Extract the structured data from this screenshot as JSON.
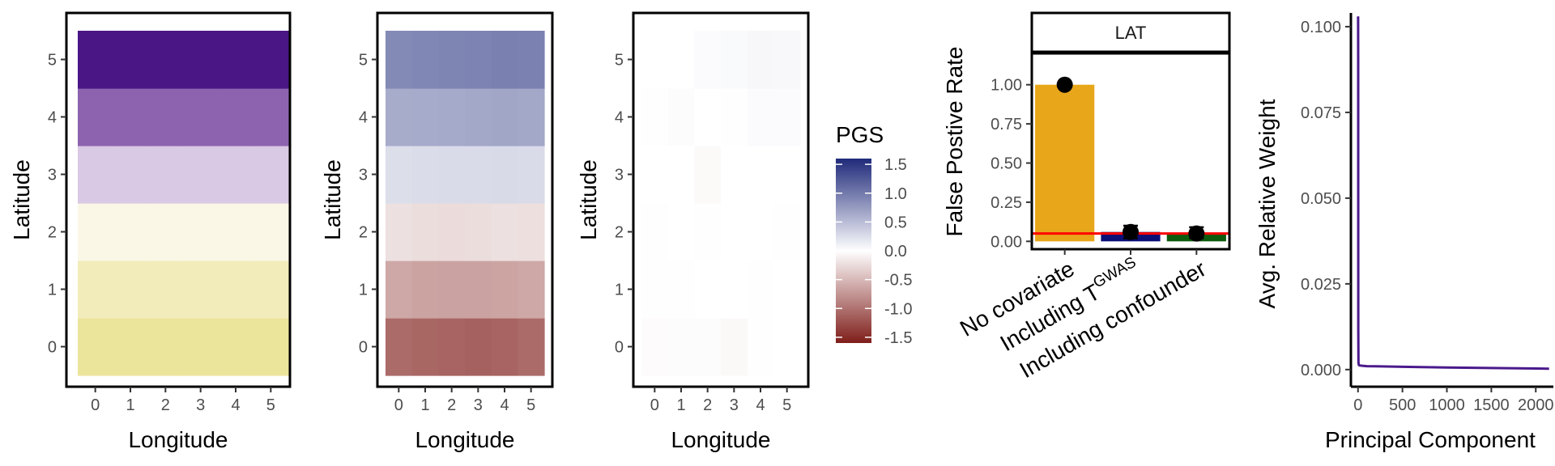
{
  "chart_data": [
    {
      "type": "heatmap",
      "xlabel": "Longitude",
      "ylabel": "Latitude",
      "x": [
        0,
        1,
        2,
        3,
        4,
        5
      ],
      "y": [
        0,
        1,
        2,
        3,
        4,
        5
      ],
      "x_tick_labels": [
        "0",
        "1",
        "2",
        "3",
        "4",
        "5"
      ],
      "y_tick_labels": [
        "0",
        "1",
        "2",
        "3",
        "4",
        "5"
      ],
      "row_colors": [
        "#ebe59c",
        "#f2ecbb",
        "#faf7e6",
        "#d9c9e4",
        "#8d63b0",
        "#4a1585"
      ],
      "grid": false
    },
    {
      "type": "heatmap",
      "xlabel": "Longitude",
      "ylabel": "Latitude",
      "x": [
        0,
        1,
        2,
        3,
        4,
        5
      ],
      "y": [
        0,
        1,
        2,
        3,
        4,
        5
      ],
      "x_tick_labels": [
        "0",
        "1",
        "2",
        "3",
        "4",
        "5"
      ],
      "y_tick_labels": [
        "0",
        "1",
        "2",
        "3",
        "4",
        "5"
      ],
      "values": [
        [
          -1.05,
          -1.08,
          -1.1,
          -1.12,
          -1.1,
          -1.05
        ],
        [
          -0.62,
          -0.65,
          -0.66,
          -0.66,
          -0.64,
          -0.62
        ],
        [
          -0.22,
          -0.24,
          -0.25,
          -0.24,
          -0.22,
          -0.23
        ],
        [
          0.25,
          0.26,
          0.27,
          0.27,
          0.28,
          0.27
        ],
        [
          0.62,
          0.63,
          0.64,
          0.66,
          0.67,
          0.66
        ],
        [
          0.88,
          0.9,
          0.92,
          0.93,
          0.95,
          0.94
        ]
      ],
      "grid": false
    },
    {
      "type": "heatmap",
      "xlabel": "Longitude",
      "ylabel": "Latitude",
      "x": [
        0,
        1,
        2,
        3,
        4,
        5
      ],
      "y": [
        0,
        1,
        2,
        3,
        4,
        5
      ],
      "x_tick_labels": [
        "0",
        "1",
        "2",
        "3",
        "4",
        "5"
      ],
      "y_tick_labels": [
        "0",
        "1",
        "2",
        "3",
        "4",
        "5"
      ],
      "values": [
        [
          -0.03,
          -0.02,
          -0.02,
          -0.05,
          -0.01,
          0.0
        ],
        [
          -0.01,
          -0.01,
          0.0,
          0.0,
          0.01,
          0.0
        ],
        [
          -0.01,
          0.0,
          -0.01,
          0.0,
          0.0,
          0.01
        ],
        [
          0.0,
          0.0,
          -0.04,
          0.0,
          0.0,
          0.0
        ],
        [
          0.01,
          0.02,
          0.0,
          0.01,
          0.03,
          0.03
        ],
        [
          0.0,
          0.0,
          0.03,
          0.04,
          0.06,
          0.05
        ]
      ],
      "legend": {
        "title": "PGS",
        "ticks": [
          "1.5",
          "1.0",
          "0.5",
          "0.0",
          "-0.5",
          "-1.0",
          "-1.5"
        ],
        "tick_values": [
          1.5,
          1.0,
          0.5,
          0.0,
          -0.5,
          -1.0,
          -1.5
        ],
        "range": [
          -1.6,
          1.6
        ],
        "low_color": "#7f1e1a",
        "mid_color": "#ffffff",
        "high_color": "#1f2a7a"
      },
      "grid": false
    },
    {
      "type": "bar",
      "facet_label": "LAT",
      "ylabel": "False Postive Rate",
      "categories": [
        "No covariate",
        "Including T^GWAS",
        "Including confounder"
      ],
      "category_labels": [
        {
          "text": "No covariate"
        },
        {
          "text": "Including T",
          "sup": "GWAS"
        },
        {
          "text": "Including confounder"
        }
      ],
      "values": [
        1.0,
        0.06,
        0.05
      ],
      "error_low": [
        1.0,
        0.02,
        0.02
      ],
      "error_high": [
        1.0,
        0.1,
        0.09
      ],
      "colors": [
        "#e8a61a",
        "#0a0f78",
        "#0e5b0e"
      ],
      "reference_line": 0.05,
      "reference_color": "#ff0000",
      "ylim": [
        -0.05,
        1.2
      ],
      "y_ticks": [
        0.0,
        0.25,
        0.5,
        0.75,
        1.0
      ],
      "y_tick_labels": [
        "0.00",
        "0.25",
        "0.50",
        "0.75",
        "1.00"
      ],
      "grid": false
    },
    {
      "type": "line",
      "xlabel": "Principal Component",
      "ylabel": "Avg. Relative Weight",
      "x": [
        1,
        2,
        3,
        5,
        10,
        20,
        50,
        100,
        200,
        500,
        1000,
        1500,
        2000,
        2150
      ],
      "values": [
        0.103,
        0.09,
        0.012,
        0.002,
        0.0013,
        0.0012,
        0.0011,
        0.001,
        0.00095,
        0.0008,
        0.0006,
        0.00045,
        0.0003,
        0.00025
      ],
      "color": "#4b1a8c",
      "xlim": [
        -80,
        2180
      ],
      "ylim": [
        -0.005,
        0.104
      ],
      "x_ticks": [
        0,
        500,
        1000,
        1500,
        2000
      ],
      "x_tick_labels": [
        "0",
        "500",
        "1000",
        "1500",
        "2000"
      ],
      "y_ticks": [
        0.0,
        0.025,
        0.05,
        0.075,
        0.1
      ],
      "y_tick_labels": [
        "0.000",
        "0.025",
        "0.050",
        "0.075",
        "0.100"
      ],
      "grid": false
    }
  ]
}
